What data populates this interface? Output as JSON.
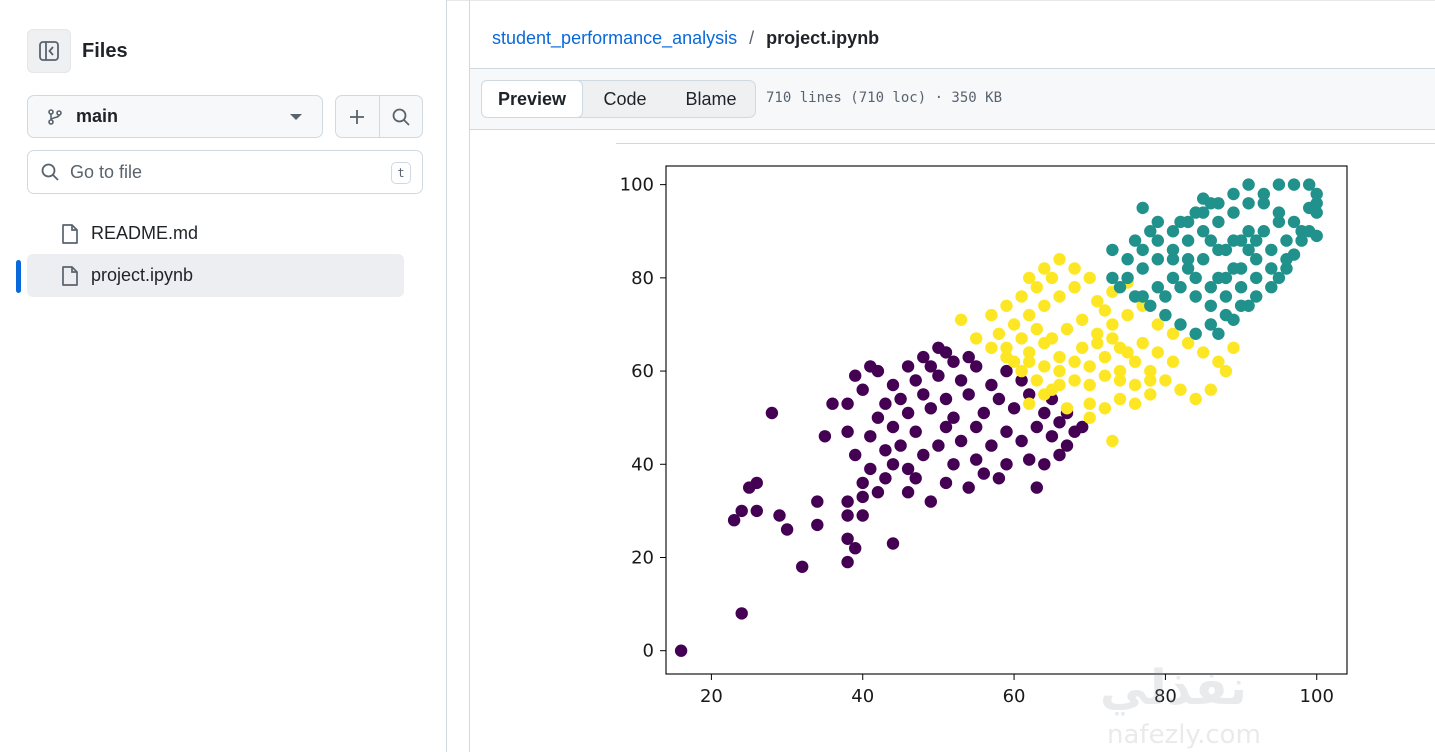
{
  "sidebar": {
    "title": "Files",
    "branch": "main",
    "goto_placeholder": "Go to file",
    "goto_shortcut": "t",
    "files": [
      {
        "label": "README.md",
        "active": false
      },
      {
        "label": "project.ipynb",
        "active": true
      }
    ]
  },
  "breadcrumb": {
    "repo": "student_performance_analysis",
    "separator": "/",
    "file": "project.ipynb"
  },
  "toolbar": {
    "tabs": [
      "Preview",
      "Code",
      "Blame"
    ],
    "active_tab": "Preview",
    "meta": "710 lines (710 loc) · 350 KB"
  },
  "colors": {
    "accent": "#0969da",
    "cluster_low": "#440154",
    "cluster_mid": "#fde725",
    "cluster_high": "#21918c"
  },
  "watermark": {
    "logo": "نفذلي",
    "url": "nafezly.com"
  },
  "chart_data": {
    "type": "scatter",
    "title": "",
    "xlabel": "",
    "ylabel": "",
    "xlim": [
      14,
      104
    ],
    "ylim": [
      -5,
      104
    ],
    "xticks": [
      20,
      40,
      60,
      80,
      100
    ],
    "yticks": [
      0,
      20,
      40,
      60,
      80,
      100
    ],
    "grid": false,
    "series": [
      {
        "color": "#440154",
        "points": [
          [
            16,
            0
          ],
          [
            24,
            8
          ],
          [
            32,
            18
          ],
          [
            38,
            19
          ],
          [
            39,
            22
          ],
          [
            38,
            24
          ],
          [
            44,
            23
          ],
          [
            30,
            26
          ],
          [
            34,
            27
          ],
          [
            23,
            28
          ],
          [
            24,
            30
          ],
          [
            26,
            30
          ],
          [
            29,
            29
          ],
          [
            38,
            29
          ],
          [
            40,
            29
          ],
          [
            34,
            32
          ],
          [
            38,
            32
          ],
          [
            40,
            33
          ],
          [
            42,
            34
          ],
          [
            46,
            34
          ],
          [
            49,
            32
          ],
          [
            25,
            35
          ],
          [
            26,
            36
          ],
          [
            40,
            36
          ],
          [
            43,
            37
          ],
          [
            47,
            37
          ],
          [
            51,
            36
          ],
          [
            54,
            35
          ],
          [
            56,
            38
          ],
          [
            58,
            37
          ],
          [
            63,
            35
          ],
          [
            41,
            39
          ],
          [
            44,
            40
          ],
          [
            46,
            39
          ],
          [
            48,
            42
          ],
          [
            52,
            40
          ],
          [
            55,
            41
          ],
          [
            59,
            40
          ],
          [
            62,
            41
          ],
          [
            64,
            40
          ],
          [
            66,
            42
          ],
          [
            39,
            42
          ],
          [
            43,
            43
          ],
          [
            45,
            44
          ],
          [
            50,
            44
          ],
          [
            53,
            45
          ],
          [
            57,
            44
          ],
          [
            61,
            45
          ],
          [
            65,
            46
          ],
          [
            67,
            44
          ],
          [
            68,
            47
          ],
          [
            35,
            46
          ],
          [
            38,
            47
          ],
          [
            41,
            46
          ],
          [
            44,
            48
          ],
          [
            47,
            47
          ],
          [
            51,
            48
          ],
          [
            55,
            48
          ],
          [
            59,
            47
          ],
          [
            63,
            48
          ],
          [
            66,
            49
          ],
          [
            69,
            48
          ],
          [
            42,
            50
          ],
          [
            46,
            51
          ],
          [
            49,
            52
          ],
          [
            52,
            50
          ],
          [
            56,
            51
          ],
          [
            60,
            52
          ],
          [
            64,
            51
          ],
          [
            67,
            51
          ],
          [
            28,
            51
          ],
          [
            38,
            53
          ],
          [
            36,
            53
          ],
          [
            43,
            53
          ],
          [
            45,
            54
          ],
          [
            48,
            55
          ],
          [
            51,
            54
          ],
          [
            54,
            55
          ],
          [
            58,
            54
          ],
          [
            62,
            55
          ],
          [
            65,
            54
          ],
          [
            40,
            56
          ],
          [
            44,
            57
          ],
          [
            47,
            58
          ],
          [
            50,
            59
          ],
          [
            53,
            58
          ],
          [
            57,
            57
          ],
          [
            61,
            58
          ],
          [
            39,
            59
          ],
          [
            42,
            60
          ],
          [
            46,
            61
          ],
          [
            49,
            61
          ],
          [
            52,
            62
          ],
          [
            55,
            61
          ],
          [
            59,
            60
          ],
          [
            41,
            61
          ],
          [
            48,
            63
          ],
          [
            51,
            64
          ],
          [
            54,
            63
          ],
          [
            50,
            65
          ]
        ]
      },
      {
        "color": "#fde725",
        "points": [
          [
            60,
            62
          ],
          [
            62,
            64
          ],
          [
            64,
            66
          ],
          [
            66,
            63
          ],
          [
            68,
            62
          ],
          [
            70,
            61
          ],
          [
            72,
            63
          ],
          [
            74,
            65
          ],
          [
            76,
            62
          ],
          [
            78,
            60
          ],
          [
            80,
            58
          ],
          [
            82,
            56
          ],
          [
            84,
            54
          ],
          [
            86,
            56
          ],
          [
            73,
            45
          ],
          [
            70,
            50
          ],
          [
            72,
            52
          ],
          [
            74,
            54
          ],
          [
            76,
            53
          ],
          [
            78,
            55
          ],
          [
            67,
            52
          ],
          [
            65,
            56
          ],
          [
            63,
            58
          ],
          [
            61,
            60
          ],
          [
            59,
            63
          ],
          [
            57,
            65
          ],
          [
            55,
            67
          ],
          [
            58,
            68
          ],
          [
            60,
            70
          ],
          [
            62,
            72
          ],
          [
            64,
            74
          ],
          [
            66,
            76
          ],
          [
            68,
            78
          ],
          [
            70,
            80
          ],
          [
            65,
            80
          ],
          [
            63,
            78
          ],
          [
            61,
            76
          ],
          [
            59,
            74
          ],
          [
            57,
            72
          ],
          [
            68,
            82
          ],
          [
            66,
            84
          ],
          [
            64,
            82
          ],
          [
            62,
            80
          ],
          [
            53,
            71
          ],
          [
            71,
            68
          ],
          [
            73,
            70
          ],
          [
            75,
            72
          ],
          [
            77,
            74
          ],
          [
            79,
            70
          ],
          [
            81,
            68
          ],
          [
            83,
            66
          ],
          [
            85,
            64
          ],
          [
            87,
            62
          ],
          [
            89,
            65
          ],
          [
            88,
            60
          ],
          [
            71,
            75
          ],
          [
            73,
            77
          ],
          [
            75,
            79
          ],
          [
            72,
            73
          ],
          [
            69,
            71
          ],
          [
            67,
            69
          ],
          [
            65,
            67
          ],
          [
            63,
            69
          ],
          [
            61,
            67
          ],
          [
            59,
            65
          ],
          [
            69,
            65
          ],
          [
            71,
            66
          ],
          [
            73,
            67
          ],
          [
            75,
            64
          ],
          [
            77,
            66
          ],
          [
            79,
            64
          ],
          [
            81,
            62
          ],
          [
            74,
            58
          ],
          [
            76,
            57
          ],
          [
            78,
            58
          ],
          [
            70,
            57
          ],
          [
            72,
            59
          ],
          [
            74,
            60
          ],
          [
            66,
            60
          ],
          [
            64,
            61
          ],
          [
            62,
            62
          ],
          [
            68,
            58
          ],
          [
            66,
            57
          ],
          [
            64,
            55
          ],
          [
            62,
            53
          ],
          [
            70,
            53
          ]
        ]
      },
      {
        "color": "#21918c",
        "points": [
          [
            75,
            80
          ],
          [
            77,
            82
          ],
          [
            79,
            84
          ],
          [
            81,
            86
          ],
          [
            83,
            88
          ],
          [
            85,
            90
          ],
          [
            87,
            92
          ],
          [
            89,
            94
          ],
          [
            91,
            96
          ],
          [
            93,
            98
          ],
          [
            95,
            100
          ],
          [
            97,
            100
          ],
          [
            99,
            100
          ],
          [
            100,
            98
          ],
          [
            100,
            96
          ],
          [
            100,
            94
          ],
          [
            99,
            90
          ],
          [
            98,
            88
          ],
          [
            97,
            85
          ],
          [
            96,
            82
          ],
          [
            95,
            80
          ],
          [
            94,
            78
          ],
          [
            92,
            76
          ],
          [
            90,
            74
          ],
          [
            88,
            72
          ],
          [
            86,
            70
          ],
          [
            84,
            68
          ],
          [
            82,
            70
          ],
          [
            80,
            72
          ],
          [
            78,
            74
          ],
          [
            76,
            76
          ],
          [
            74,
            78
          ],
          [
            73,
            80
          ],
          [
            75,
            84
          ],
          [
            77,
            86
          ],
          [
            79,
            88
          ],
          [
            81,
            90
          ],
          [
            83,
            92
          ],
          [
            85,
            94
          ],
          [
            87,
            96
          ],
          [
            89,
            98
          ],
          [
            91,
            100
          ],
          [
            93,
            96
          ],
          [
            95,
            92
          ],
          [
            91,
            90
          ],
          [
            89,
            88
          ],
          [
            87,
            86
          ],
          [
            85,
            84
          ],
          [
            83,
            82
          ],
          [
            81,
            80
          ],
          [
            79,
            78
          ],
          [
            77,
            76
          ],
          [
            84,
            76
          ],
          [
            86,
            78
          ],
          [
            88,
            80
          ],
          [
            90,
            82
          ],
          [
            92,
            84
          ],
          [
            94,
            86
          ],
          [
            96,
            88
          ],
          [
            98,
            90
          ],
          [
            88,
            86
          ],
          [
            86,
            88
          ],
          [
            90,
            88
          ],
          [
            92,
            88
          ],
          [
            84,
            80
          ],
          [
            82,
            78
          ],
          [
            80,
            76
          ],
          [
            86,
            74
          ],
          [
            88,
            76
          ],
          [
            90,
            78
          ],
          [
            92,
            80
          ],
          [
            94,
            82
          ],
          [
            96,
            84
          ],
          [
            100,
            89
          ],
          [
            99,
            95
          ],
          [
            89,
            71
          ],
          [
            87,
            68
          ],
          [
            91,
            74
          ],
          [
            77,
            95
          ],
          [
            85,
            97
          ],
          [
            79,
            92
          ],
          [
            83,
            84
          ],
          [
            81,
            84
          ],
          [
            89,
            82
          ],
          [
            87,
            80
          ],
          [
            91,
            86
          ],
          [
            93,
            90
          ],
          [
            95,
            94
          ],
          [
            97,
            92
          ],
          [
            73,
            86
          ],
          [
            76,
            88
          ],
          [
            78,
            90
          ],
          [
            82,
            92
          ],
          [
            84,
            94
          ],
          [
            86,
            96
          ]
        ]
      }
    ]
  }
}
